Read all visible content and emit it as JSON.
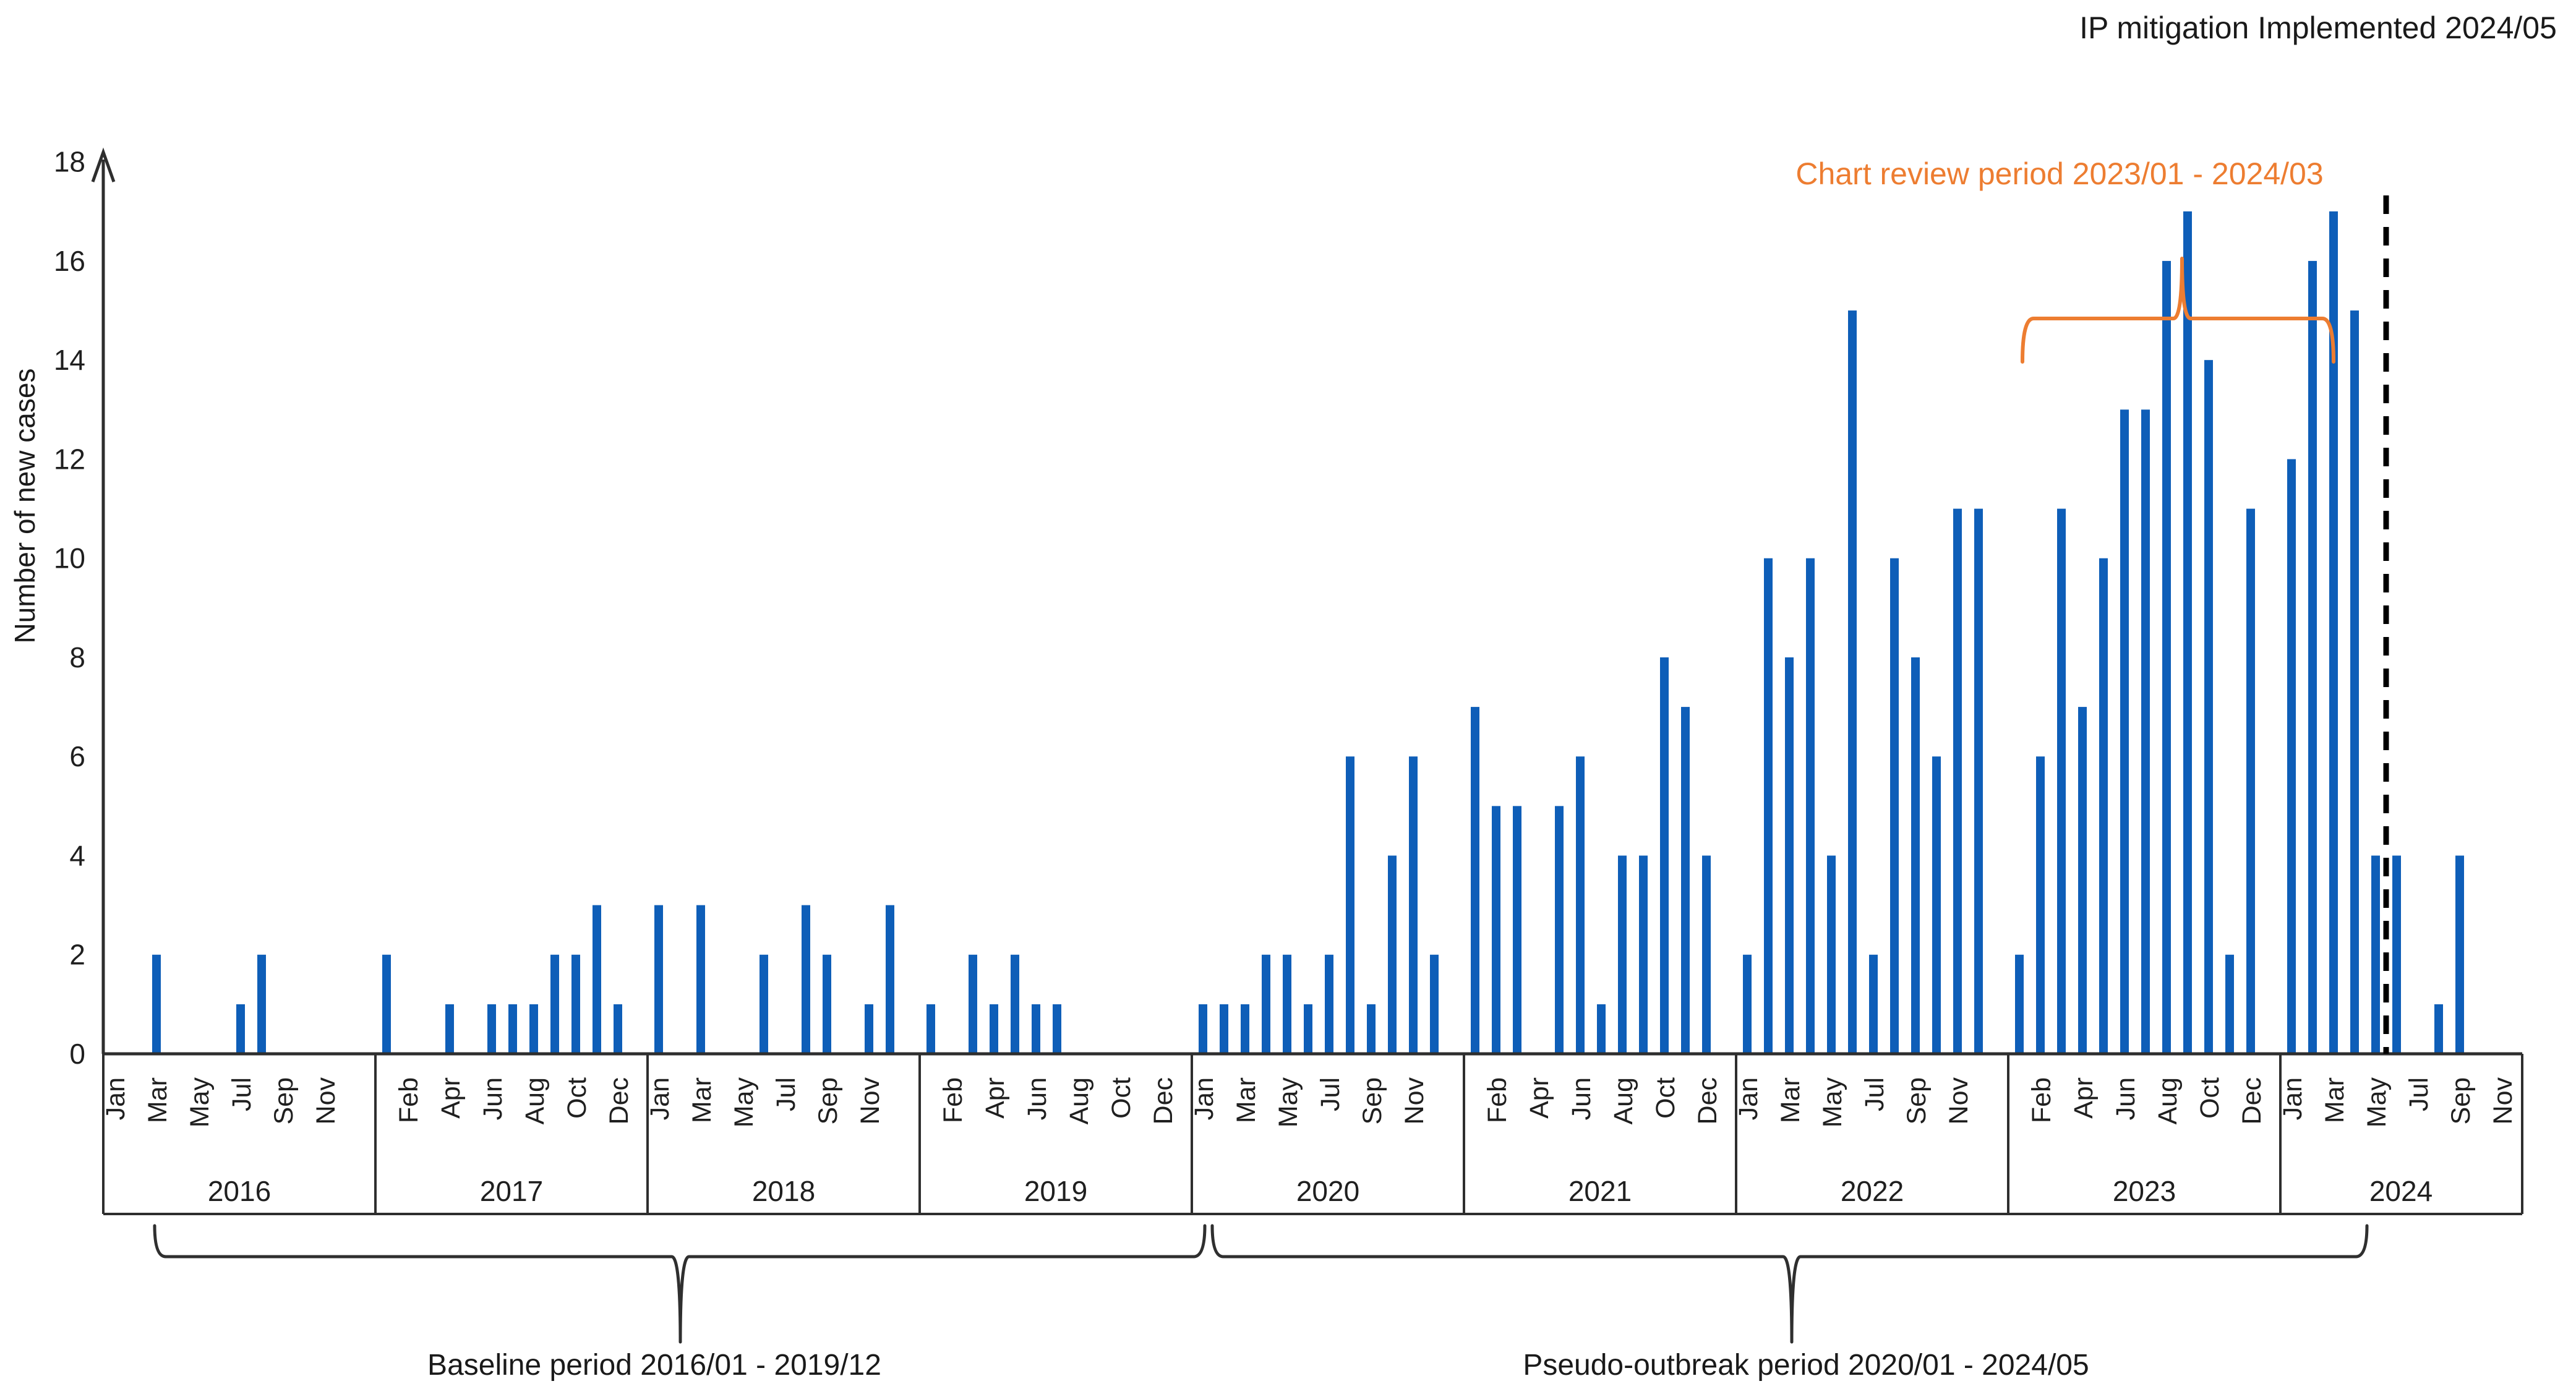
{
  "chart_data": {
    "type": "bar",
    "title": "",
    "xlabel": "",
    "ylabel": "Number of new cases",
    "ylim": [
      0,
      18
    ],
    "ytick_step": 2,
    "grid": false,
    "legend": "none",
    "bar_color": "#0E5EB8",
    "axis_color": "#2e2e2e",
    "dashed_line_color": "#000000",
    "months": [
      "Jan",
      "Feb",
      "Mar",
      "Apr",
      "May",
      "Jun",
      "Jul",
      "Aug",
      "Sep",
      "Oct",
      "Nov",
      "Dec"
    ],
    "years": [
      {
        "year": 2016,
        "values": [
          0,
          0,
          2,
          0,
          0,
          0,
          1,
          2,
          0,
          0,
          0,
          0
        ],
        "label_slots": [
          0,
          2,
          4,
          6,
          8,
          10
        ]
      },
      {
        "year": 2017,
        "values": [
          2,
          0,
          0,
          1,
          0,
          1,
          1,
          1,
          2,
          2,
          3,
          1
        ],
        "label_slots": [
          1,
          3,
          5,
          7,
          9,
          11
        ]
      },
      {
        "year": 2018,
        "values": [
          3,
          0,
          3,
          0,
          0,
          2,
          0,
          3,
          2,
          0,
          1,
          3
        ],
        "label_slots": [
          0,
          2,
          4,
          6,
          8,
          10
        ]
      },
      {
        "year": 2019,
        "values": [
          1,
          0,
          2,
          1,
          2,
          1,
          1,
          0,
          0,
          0,
          0,
          0
        ],
        "label_slots": [
          1,
          3,
          5,
          7,
          9,
          11
        ]
      },
      {
        "year": 2020,
        "values": [
          1,
          1,
          1,
          2,
          2,
          1,
          2,
          6,
          1,
          4,
          6,
          2
        ],
        "label_slots": [
          0,
          2,
          4,
          6,
          8,
          10
        ]
      },
      {
        "year": 2021,
        "values": [
          7,
          5,
          5,
          0,
          5,
          6,
          1,
          4,
          4,
          8,
          7,
          4
        ],
        "label_slots": [
          1,
          3,
          5,
          7,
          9,
          11
        ]
      },
      {
        "year": 2022,
        "values": [
          2,
          10,
          8,
          10,
          4,
          15,
          2,
          10,
          8,
          6,
          11,
          11
        ],
        "label_slots": [
          0,
          2,
          4,
          6,
          8,
          10
        ]
      },
      {
        "year": 2023,
        "values": [
          2,
          6,
          11,
          7,
          10,
          13,
          13,
          16,
          17,
          14,
          2,
          11
        ],
        "label_slots": [
          1,
          3,
          5,
          7,
          9,
          11
        ]
      },
      {
        "year": 2024,
        "values": [
          12,
          16,
          17,
          15,
          4,
          4,
          0,
          1,
          4,
          0,
          0,
          0
        ],
        "label_slots": [
          0,
          2,
          4,
          6,
          8,
          10
        ]
      }
    ]
  },
  "annotations": {
    "ip_text": "IP mitigation Implemented 2024/05",
    "ip_line_month": "2024/05",
    "review_text": "Chart review period 2023/01 - 2024/03",
    "review_color": "#ED7D31",
    "review_span": {
      "from": "2023/01",
      "to": "2024/03"
    },
    "baseline_text": "Baseline period 2016/01 - 2019/12",
    "baseline_span": {
      "from": "2016/01",
      "to": "2019/12"
    },
    "pseudo_text": "Pseudo-outbreak  period 2020/01 - 2024/05",
    "pseudo_span": {
      "from": "2020/01",
      "to": "2024/05"
    }
  }
}
